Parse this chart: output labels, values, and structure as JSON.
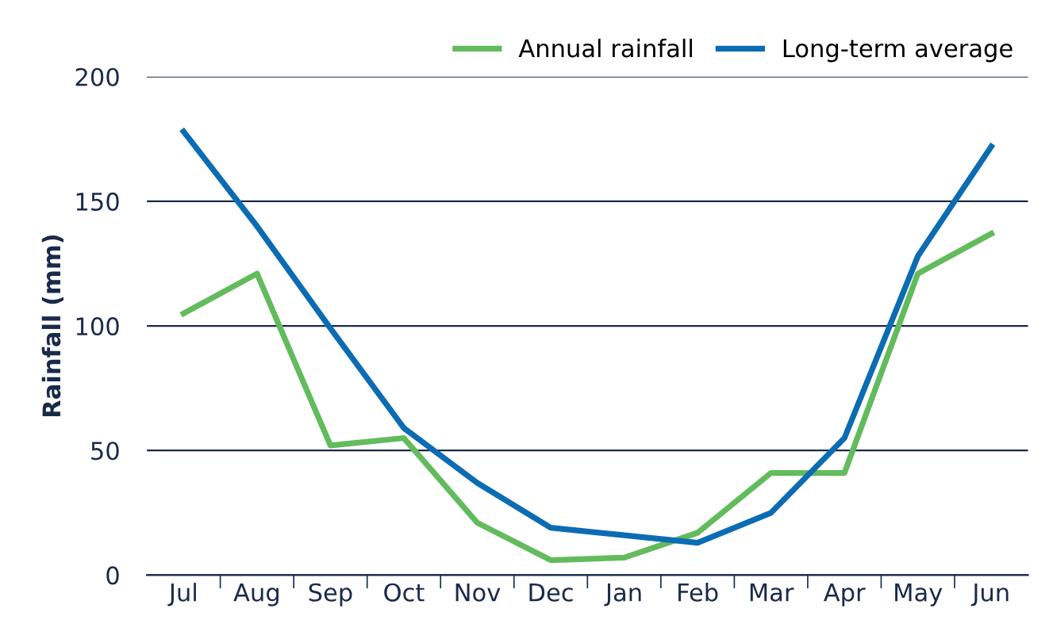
{
  "chart_data": {
    "type": "line",
    "ylabel": "Rainfall (mm)",
    "categories": [
      "Jul",
      "Aug",
      "Sep",
      "Oct",
      "Nov",
      "Dec",
      "Jan",
      "Feb",
      "Mar",
      "Apr",
      "May",
      "Jun"
    ],
    "series": [
      {
        "name": "Annual rainfall",
        "color": "#62bb5c",
        "values": [
          105,
          121,
          52,
          55,
          21,
          6,
          7,
          17,
          41,
          41,
          121,
          137
        ]
      },
      {
        "name": "Long-term average",
        "color": "#0b6cb3",
        "values": [
          178,
          140,
          99,
          59,
          37,
          19,
          16,
          13,
          25,
          55,
          128,
          172
        ]
      }
    ],
    "ylim": [
      0,
      200
    ],
    "yticks": [
      0,
      50,
      100,
      150,
      200
    ],
    "grid": "y",
    "legend": "top right",
    "marker": "none",
    "line_style": "solid"
  }
}
